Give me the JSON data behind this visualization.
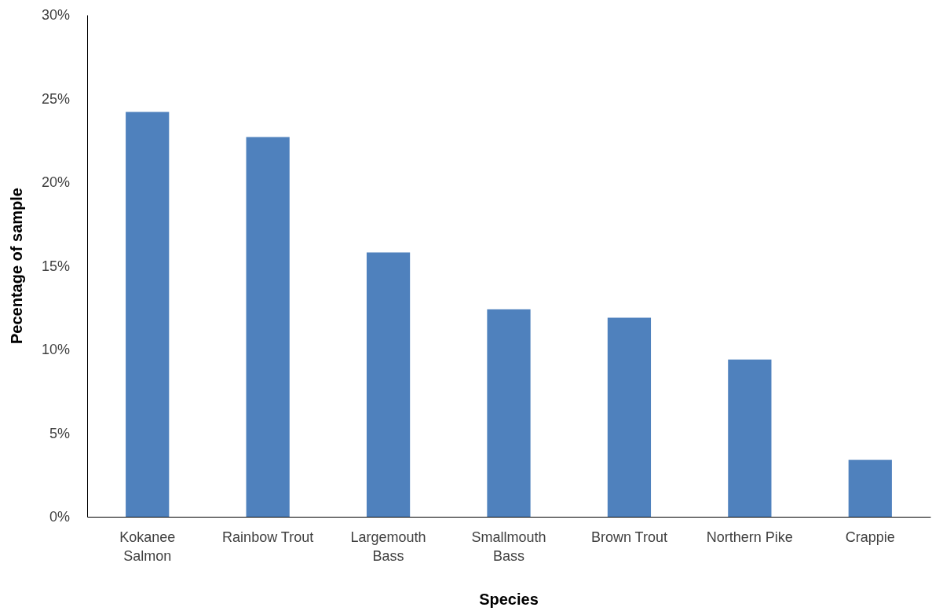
{
  "chart_data": {
    "type": "bar",
    "xlabel": "Species",
    "ylabel": "Pecentage of sample",
    "categories": [
      "Kokanee Salmon",
      "Rainbow Trout",
      "Largemouth Bass",
      "Smallmouth Bass",
      "Brown Trout",
      "Northern Pike",
      "Crappie"
    ],
    "values": [
      24.2,
      22.7,
      15.8,
      12.4,
      11.9,
      9.4,
      3.4
    ],
    "color": "#4f81bd",
    "ylim": [
      0,
      30
    ],
    "yticks": [
      {
        "value": 0,
        "label": "0%"
      },
      {
        "value": 5,
        "label": "5%"
      },
      {
        "value": 10,
        "label": "10%"
      },
      {
        "value": 15,
        "label": "15%"
      },
      {
        "value": 20,
        "label": "20%"
      },
      {
        "value": 25,
        "label": "25%"
      },
      {
        "value": 30,
        "label": "30%"
      }
    ],
    "grid": false
  }
}
